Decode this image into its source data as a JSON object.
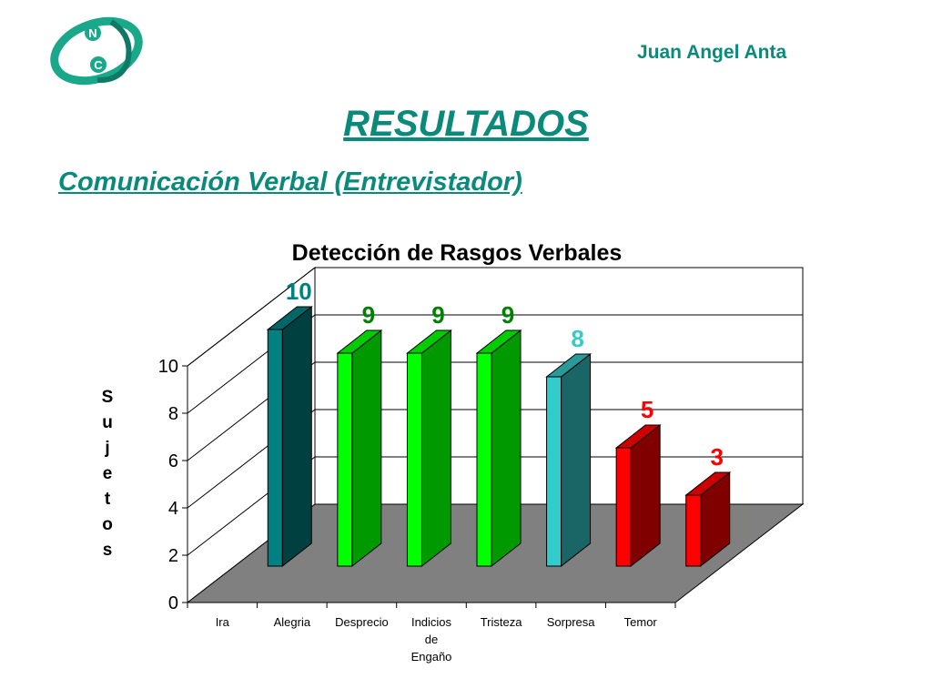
{
  "header": {
    "logo_letters": [
      "N",
      "C"
    ],
    "author": "Juan Angel Anta"
  },
  "slide": {
    "title": "RESULTADOS",
    "subtitle": "Comunicación Verbal (Entrevistador)"
  },
  "colors": {
    "brand": "#0a8a7a",
    "floor": "#808080"
  },
  "chart_data": {
    "type": "bar",
    "title": "Detección de Rasgos Verbales",
    "ylabel": "Sujetos",
    "xlabel": "",
    "ylim": [
      0,
      10
    ],
    "yticks": [
      0,
      2,
      4,
      6,
      8,
      10
    ],
    "grid": true,
    "categories": [
      "Ira",
      "Alegria",
      "Desprecio",
      "Indicios de Engaño",
      "Tristeza",
      "Sorpresa",
      "Temor"
    ],
    "category_labels": [
      [
        "Ira"
      ],
      [
        "Alegria"
      ],
      [
        "Desprecio"
      ],
      [
        "Indicios",
        "de",
        "Engaño"
      ],
      [
        "Tristeza"
      ],
      [
        "Sorpresa"
      ],
      [
        "Temor"
      ]
    ],
    "values": [
      10,
      9,
      9,
      9,
      8,
      5,
      3
    ],
    "data_labels": [
      "10",
      "9",
      "9",
      "9",
      "8",
      "5",
      "3"
    ],
    "colors": [
      {
        "front": "#008080",
        "side": "#004040",
        "top": "#006666",
        "label": "#008080"
      },
      {
        "front": "#00ff00",
        "side": "#009900",
        "top": "#00cc00",
        "label": "#008000"
      },
      {
        "front": "#00ff00",
        "side": "#009900",
        "top": "#00cc00",
        "label": "#008000"
      },
      {
        "front": "#00ff00",
        "side": "#009900",
        "top": "#00cc00",
        "label": "#008000"
      },
      {
        "front": "#33cccc",
        "side": "#1a6666",
        "top": "#299999",
        "label": "#33cccc"
      },
      {
        "front": "#ff0000",
        "side": "#800000",
        "top": "#cc0000",
        "label": "#ff0000"
      },
      {
        "front": "#ff0000",
        "side": "#800000",
        "top": "#cc0000",
        "label": "#ff0000"
      }
    ]
  }
}
